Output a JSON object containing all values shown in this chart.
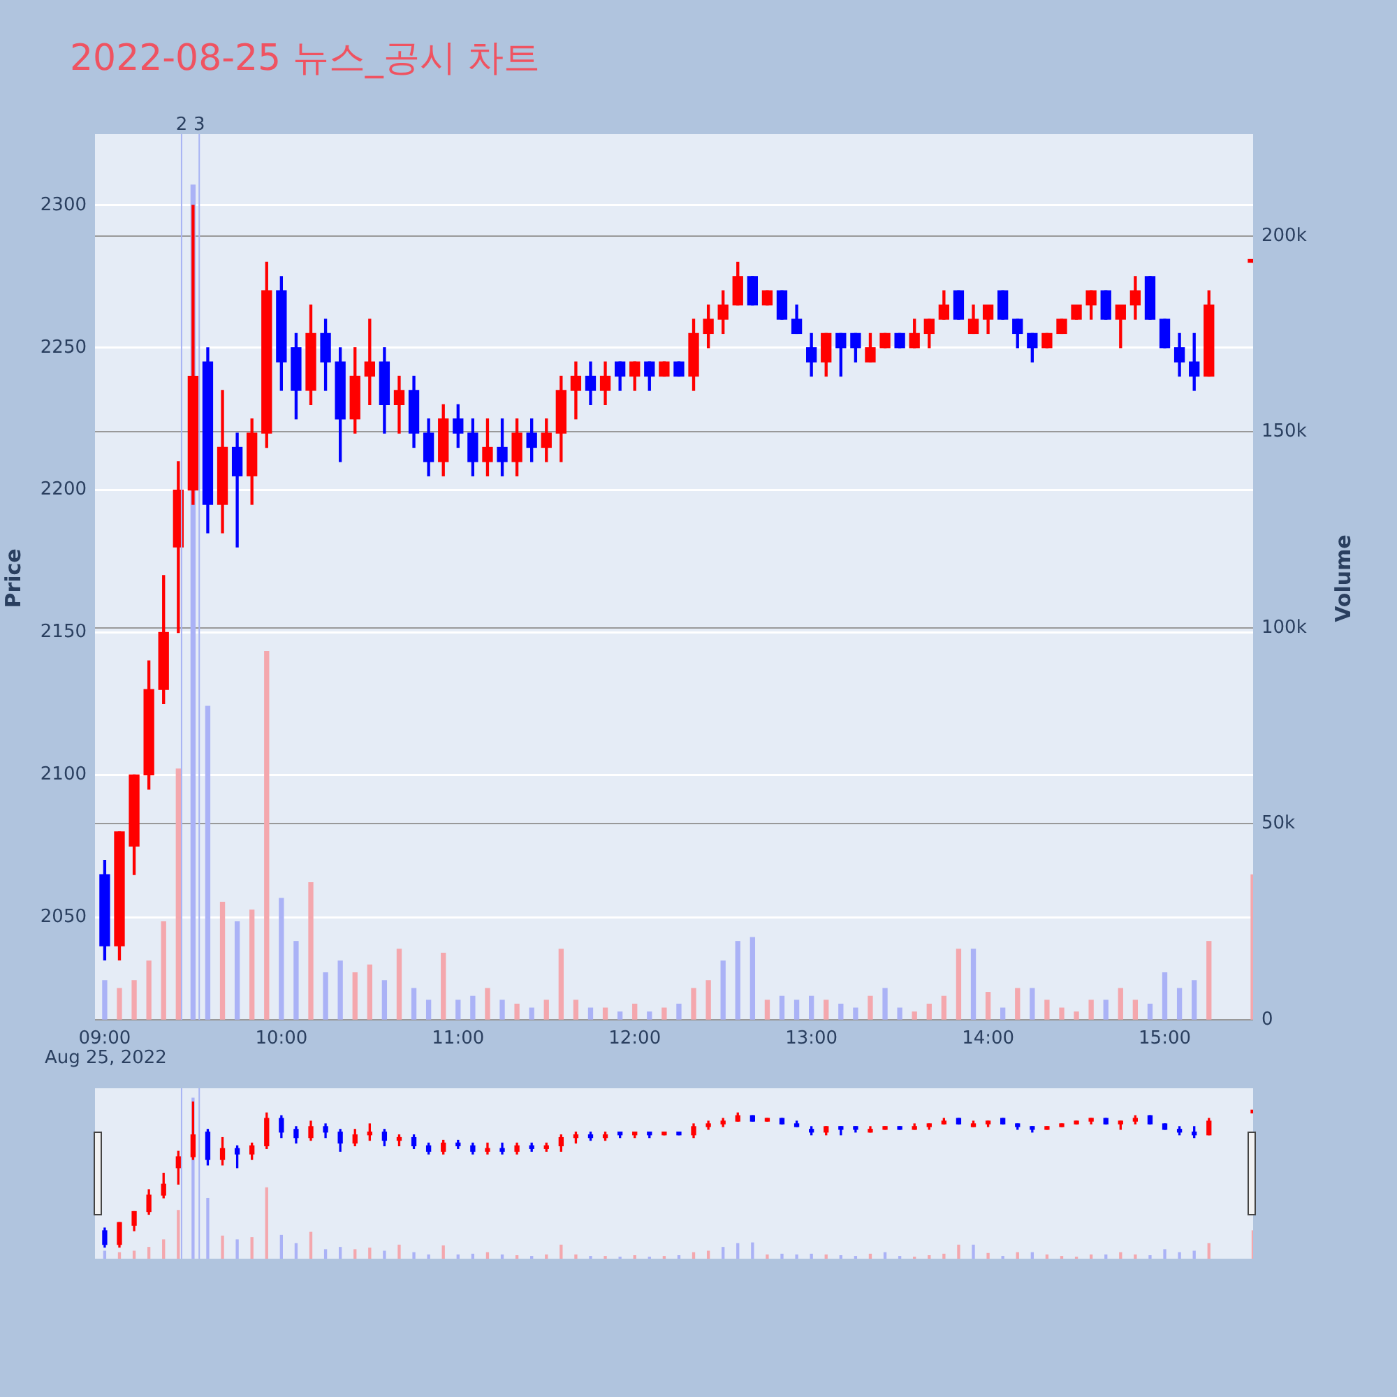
{
  "chart_data": {
    "type": "candlestick",
    "title": "2022-08-25 뉴스_공시 차트",
    "ylabel": "Price",
    "y2label": "Volume",
    "annotations": [
      "Aug 25, 2022",
      {
        "text": "2",
        "x": 9.435,
        "y": 2325
      },
      {
        "text": "3",
        "x": 9.535,
        "y": 2325
      }
    ],
    "x": [
      9,
      9.0833,
      9.1667,
      9.25,
      9.3333,
      9.4167,
      9.5,
      9.5833,
      9.6667,
      9.75,
      9.8333,
      9.9167,
      10,
      10.0833,
      10.1667,
      10.25,
      10.3333,
      10.4167,
      10.5,
      10.5833,
      10.6667,
      10.75,
      10.8333,
      10.9167,
      11,
      11.0833,
      11.1667,
      11.25,
      11.3333,
      11.4167,
      11.5,
      11.5833,
      11.6667,
      11.75,
      11.8333,
      11.9167,
      12,
      12.0833,
      12.1667,
      12.25,
      12.3333,
      12.4167,
      12.5,
      12.5833,
      12.6667,
      12.75,
      12.8333,
      12.9167,
      13,
      13.0833,
      13.1667,
      13.25,
      13.3333,
      13.4167,
      13.5,
      13.5833,
      13.6667,
      13.75,
      13.8333,
      13.9167,
      14,
      14.0833,
      14.1667,
      14.25,
      14.3333,
      14.4167,
      14.5,
      14.5833,
      14.6667,
      14.75,
      14.8333,
      14.9167,
      15,
      15.0833,
      15.1667,
      15.25,
      15.5
    ],
    "ohlc": [
      [
        2065,
        2070,
        2035,
        2040
      ],
      [
        2040,
        2080,
        2035,
        2080
      ],
      [
        2075,
        2100,
        2065,
        2100
      ],
      [
        2100,
        2140,
        2095,
        2130
      ],
      [
        2130,
        2170,
        2125,
        2150
      ],
      [
        2180,
        2210,
        2150,
        2200
      ],
      [
        2200,
        2300,
        2195,
        2240
      ],
      [
        2245,
        2250,
        2185,
        2195
      ],
      [
        2195,
        2235,
        2185,
        2215
      ],
      [
        2215,
        2220,
        2180,
        2205
      ],
      [
        2205,
        2225,
        2195,
        2220
      ],
      [
        2220,
        2280,
        2215,
        2270
      ],
      [
        2270,
        2275,
        2235,
        2245
      ],
      [
        2250,
        2255,
        2225,
        2235
      ],
      [
        2235,
        2265,
        2230,
        2255
      ],
      [
        2255,
        2260,
        2235,
        2245
      ],
      [
        2245,
        2250,
        2210,
        2225
      ],
      [
        2225,
        2250,
        2220,
        2240
      ],
      [
        2240,
        2260,
        2230,
        2245
      ],
      [
        2245,
        2250,
        2220,
        2230
      ],
      [
        2230,
        2240,
        2220,
        2235
      ],
      [
        2235,
        2240,
        2215,
        2220
      ],
      [
        2220,
        2225,
        2205,
        2210
      ],
      [
        2210,
        2230,
        2205,
        2225
      ],
      [
        2225,
        2230,
        2215,
        2220
      ],
      [
        2220,
        2225,
        2205,
        2210
      ],
      [
        2210,
        2225,
        2205,
        2215
      ],
      [
        2215,
        2225,
        2205,
        2210
      ],
      [
        2210,
        2225,
        2205,
        2220
      ],
      [
        2220,
        2225,
        2210,
        2215
      ],
      [
        2215,
        2225,
        2210,
        2220
      ],
      [
        2220,
        2240,
        2210,
        2235
      ],
      [
        2235,
        2245,
        2225,
        2240
      ],
      [
        2240,
        2245,
        2230,
        2235
      ],
      [
        2235,
        2245,
        2230,
        2240
      ],
      [
        2245,
        2245,
        2235,
        2240
      ],
      [
        2240,
        2245,
        2235,
        2245
      ],
      [
        2245,
        2245,
        2235,
        2240
      ],
      [
        2240,
        2245,
        2240,
        2245
      ],
      [
        2245,
        2245,
        2240,
        2240
      ],
      [
        2240,
        2260,
        2235,
        2255
      ],
      [
        2255,
        2265,
        2250,
        2260
      ],
      [
        2260,
        2270,
        2255,
        2265
      ],
      [
        2265,
        2280,
        2265,
        2275
      ],
      [
        2275,
        2275,
        2265,
        2265
      ],
      [
        2265,
        2270,
        2265,
        2270
      ],
      [
        2270,
        2270,
        2260,
        2260
      ],
      [
        2260,
        2265,
        2255,
        2255
      ],
      [
        2250,
        2255,
        2240,
        2245
      ],
      [
        2245,
        2255,
        2240,
        2255
      ],
      [
        2255,
        2255,
        2240,
        2250
      ],
      [
        2255,
        2255,
        2245,
        2250
      ],
      [
        2245,
        2255,
        2245,
        2250
      ],
      [
        2250,
        2255,
        2250,
        2255
      ],
      [
        2255,
        2255,
        2250,
        2250
      ],
      [
        2250,
        2260,
        2250,
        2255
      ],
      [
        2255,
        2260,
        2250,
        2260
      ],
      [
        2260,
        2270,
        2260,
        2265
      ],
      [
        2270,
        2270,
        2260,
        2260
      ],
      [
        2255,
        2265,
        2255,
        2260
      ],
      [
        2260,
        2265,
        2255,
        2265
      ],
      [
        2270,
        2270,
        2260,
        2260
      ],
      [
        2260,
        2260,
        2250,
        2255
      ],
      [
        2255,
        2255,
        2245,
        2250
      ],
      [
        2250,
        2255,
        2250,
        2255
      ],
      [
        2255,
        2260,
        2255,
        2260
      ],
      [
        2260,
        2265,
        2260,
        2265
      ],
      [
        2265,
        2270,
        2260,
        2270
      ],
      [
        2270,
        2270,
        2260,
        2260
      ],
      [
        2260,
        2265,
        2250,
        2265
      ],
      [
        2265,
        2275,
        2260,
        2270
      ],
      [
        2275,
        2275,
        2260,
        2260
      ],
      [
        2260,
        2260,
        2250,
        2250
      ],
      [
        2250,
        2255,
        2240,
        2245
      ],
      [
        2245,
        2255,
        2235,
        2240
      ],
      [
        2240,
        2270,
        2240,
        2265
      ],
      [
        2280,
        2280,
        2280,
        2280
      ]
    ],
    "colors": [
      "#0000ff",
      "#ff0000",
      "#ff0000",
      "#ff0000",
      "#ff0000",
      "#ff0000",
      "#ff0000",
      "#0000ff",
      "#ff0000",
      "#0000ff",
      "#ff0000",
      "#ff0000",
      "#0000ff",
      "#0000ff",
      "#ff0000",
      "#0000ff",
      "#0000ff",
      "#ff0000",
      "#ff0000",
      "#0000ff",
      "#ff0000",
      "#0000ff",
      "#0000ff",
      "#ff0000",
      "#0000ff",
      "#0000ff",
      "#ff0000",
      "#0000ff",
      "#ff0000",
      "#0000ff",
      "#ff0000",
      "#ff0000",
      "#ff0000",
      "#0000ff",
      "#ff0000",
      "#0000ff",
      "#ff0000",
      "#0000ff",
      "#ff0000",
      "#0000ff",
      "#ff0000",
      "#ff0000",
      "#ff0000",
      "#ff0000",
      "#0000ff",
      "#ff0000",
      "#0000ff",
      "#0000ff",
      "#0000ff",
      "#ff0000",
      "#0000ff",
      "#0000ff",
      "#ff0000",
      "#ff0000",
      "#0000ff",
      "#ff0000",
      "#ff0000",
      "#ff0000",
      "#0000ff",
      "#ff0000",
      "#ff0000",
      "#0000ff",
      "#0000ff",
      "#0000ff",
      "#ff0000",
      "#ff0000",
      "#ff0000",
      "#ff0000",
      "#0000ff",
      "#ff0000",
      "#ff0000",
      "#0000ff",
      "#0000ff",
      "#0000ff",
      "#0000ff",
      "#ff0000",
      "#ff0000"
    ],
    "series": [
      {
        "type": "bar",
        "axis": "y2",
        "values": [
          10000,
          8000,
          10000,
          15000,
          25000,
          64000,
          213000,
          80000,
          30000,
          25000,
          28000,
          94000,
          31000,
          20000,
          35000,
          12000,
          15000,
          12000,
          14000,
          10000,
          18000,
          8000,
          5000,
          17000,
          5000,
          6000,
          8000,
          5000,
          4000,
          3000,
          5000,
          18000,
          5000,
          3000,
          3000,
          2000,
          4000,
          2000,
          3000,
          4000,
          8000,
          10000,
          15000,
          20000,
          21000,
          5000,
          6000,
          5000,
          6000,
          5000,
          4000,
          3000,
          6000,
          8000,
          3000,
          2000,
          4000,
          6000,
          18000,
          18000,
          7000,
          3000,
          8000,
          8000,
          5000,
          3000,
          2000,
          5000,
          5000,
          8000,
          5000,
          4000,
          12000,
          8000,
          10000,
          20000,
          37000
        ],
        "colors": [
          "#aab2f6",
          "#f4a7ad",
          "#f4a7ad",
          "#f4a7ad",
          "#f4a7ad",
          "#f4a7ad",
          "#aab2f6",
          "#aab2f6",
          "#f4a7ad",
          "#aab2f6",
          "#f4a7ad",
          "#f4a7ad",
          "#aab2f6",
          "#aab2f6",
          "#f4a7ad",
          "#aab2f6",
          "#aab2f6",
          "#f4a7ad",
          "#f4a7ad",
          "#aab2f6",
          "#f4a7ad",
          "#aab2f6",
          "#aab2f6",
          "#f4a7ad",
          "#aab2f6",
          "#aab2f6",
          "#f4a7ad",
          "#aab2f6",
          "#f4a7ad",
          "#aab2f6",
          "#f4a7ad",
          "#f4a7ad",
          "#f4a7ad",
          "#aab2f6",
          "#f4a7ad",
          "#aab2f6",
          "#f4a7ad",
          "#aab2f6",
          "#f4a7ad",
          "#aab2f6",
          "#f4a7ad",
          "#f4a7ad",
          "#aab2f6",
          "#aab2f6",
          "#aab2f6",
          "#f4a7ad",
          "#aab2f6",
          "#aab2f6",
          "#aab2f6",
          "#f4a7ad",
          "#aab2f6",
          "#aab2f6",
          "#f4a7ad",
          "#aab2f6",
          "#aab2f6",
          "#f4a7ad",
          "#f4a7ad",
          "#f4a7ad",
          "#f4a7ad",
          "#aab2f6",
          "#f4a7ad",
          "#aab2f6",
          "#f4a7ad",
          "#aab2f6",
          "#f4a7ad",
          "#f4a7ad",
          "#f4a7ad",
          "#f4a7ad",
          "#aab2f6",
          "#f4a7ad",
          "#f4a7ad",
          "#aab2f6",
          "#aab2f6",
          "#aab2f6",
          "#aab2f6",
          "#f4a7ad",
          "#f4a7ad"
        ]
      }
    ],
    "xlim": [
      8.945,
      15.5
    ],
    "xticks": [
      {
        "value": 9,
        "label": "09:00"
      },
      {
        "value": 10,
        "label": "10:00"
      },
      {
        "value": 11,
        "label": "11:00"
      },
      {
        "value": 12,
        "label": "12:00"
      },
      {
        "value": 13,
        "label": "13:00"
      },
      {
        "value": 14,
        "label": "14:00"
      },
      {
        "value": 15,
        "label": "15:00"
      }
    ],
    "ylim": [
      2014,
      2325
    ],
    "yticks": [
      2050,
      2100,
      2150,
      2200,
      2250,
      2300
    ],
    "y2lim": [
      0,
      226000
    ],
    "y2ticks": [
      0,
      {
        "value": 50000,
        "label": "50k"
      },
      {
        "value": 100000,
        "label": "100k"
      },
      {
        "value": 150000,
        "label": "150k"
      },
      {
        "value": 200000,
        "label": "200k"
      }
    ],
    "ref_lines": [
      {
        "axis": "x",
        "value": 9.435,
        "color": "#a8b4f4"
      },
      {
        "axis": "x",
        "value": 9.535,
        "color": "#a8b4f4"
      }
    ],
    "grid": "y",
    "legend": false
  }
}
